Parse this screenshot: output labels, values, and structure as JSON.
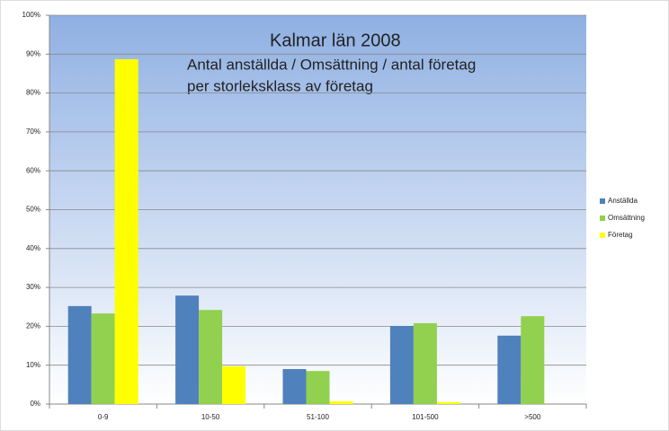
{
  "chart_data": {
    "type": "bar",
    "title": "Kalmar län 2008",
    "subtitle": [
      "Antal anställda / Omsättning / antal företag",
      "per storleksklass av företag"
    ],
    "categories": [
      "0-9",
      "10-50",
      "51-100",
      "101-500",
      ">500"
    ],
    "series": [
      {
        "name": "Anställda",
        "color": "#4f81bd",
        "values": [
          25.2,
          27.9,
          9.0,
          20.1,
          17.6
        ]
      },
      {
        "name": "Omsättning",
        "color": "#92d050",
        "values": [
          23.3,
          24.2,
          8.5,
          20.8,
          22.6
        ]
      },
      {
        "name": "Företag",
        "color": "#ffff00",
        "values": [
          88.7,
          9.7,
          0.7,
          0.5,
          0
        ]
      }
    ],
    "ylim": [
      0,
      100
    ],
    "yticks": [
      {
        "value": 0,
        "label": "0%"
      },
      {
        "value": 10,
        "label": "10%"
      },
      {
        "value": 20,
        "label": "20%"
      },
      {
        "value": 30,
        "label": "30%"
      },
      {
        "value": 40,
        "label": "40%"
      },
      {
        "value": 50,
        "label": "50%"
      },
      {
        "value": 60,
        "label": "60%"
      },
      {
        "value": 70,
        "label": "70%"
      },
      {
        "value": 80,
        "label": "80%"
      },
      {
        "value": 90,
        "label": "90%"
      },
      {
        "value": 100,
        "label": "100%"
      }
    ],
    "grid": true,
    "legend": "right"
  }
}
